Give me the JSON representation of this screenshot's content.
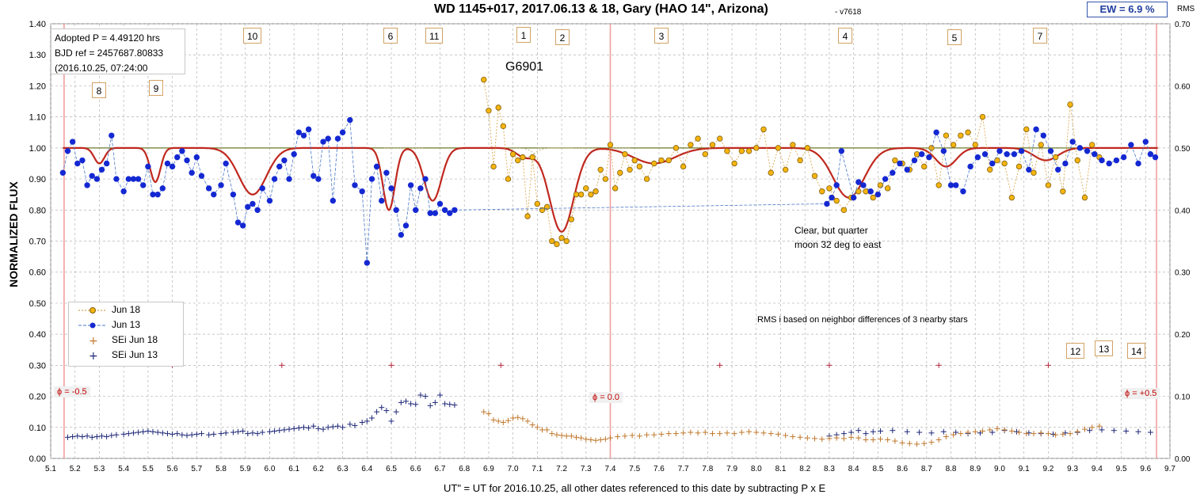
{
  "header": {
    "title": "WD 1145+017, 2017.06.13 & 18, Gary (HAO 14\", Arizona)",
    "version": "- v7618",
    "ew_badge": "EW = 6.9 %",
    "right_axis_label": "RMS"
  },
  "axes": {
    "ylabel": "NORMALIZED FLUX",
    "xlabel": "UT\" = UT for 2016.10.25, all other dates referenced to this date by subtracting P x E"
  },
  "info_box": {
    "line1": "Adopted P = 4.49120  hrs",
    "line2": "BJD ref = 2457687.80833",
    "line3": "(2016.10.25,  07:24:00"
  },
  "annotations": {
    "g6901": "G6901",
    "note_line1": "Clear, but quarter",
    "note_line2": "moon 32 deg to east",
    "rms_note": "RMS i based on neighbor differences of 3 nearby stars",
    "phase_left": "ϕ = -0.5",
    "phase_mid": "ϕ = 0.0",
    "phase_right": "ϕ = +0.5"
  },
  "dip_markers": [
    "10",
    "6",
    "11",
    "1",
    "2",
    "3",
    "4",
    "5",
    "7",
    "8",
    "9",
    "12",
    "13",
    "14"
  ],
  "legend": {
    "jun18": "Jun 18",
    "jun13": "Jun 13",
    "sei18": "SEi Jun 18",
    "sei13": "SEi Jun 13"
  },
  "colors": {
    "jun18_fill": "#f5b40f",
    "jun13_fill": "#1428d2",
    "model_line": "#c0281e",
    "sei18": "#c0782d",
    "sei13": "#1e2878",
    "phase_line": "#f0a0a0",
    "grid": "#b4b4b4"
  },
  "chart_data": {
    "type": "scatter",
    "title": "WD 1145+017, 2017.06.13 & 18, Gary (HAO 14\", Arizona)",
    "xlabel": "UT\" = UT for 2016.10.25, all other dates referenced to this date by subtracting P x E",
    "ylabel": "NORMALIZED FLUX",
    "y2label": "RMS",
    "xlim": [
      5.1,
      9.7
    ],
    "ylim": [
      0.0,
      1.4
    ],
    "y2lim": [
      0.0,
      0.7
    ],
    "x_ticks": [
      "5.1",
      "5.2",
      "5.3",
      "5.4",
      "5.5",
      "5.6",
      "5.7",
      "5.8",
      "5.9",
      "6.0",
      "6.1",
      "6.2",
      "6.3",
      "6.4",
      "6.5",
      "6.6",
      "6.7",
      "6.8",
      "6.9",
      "7.0",
      "7.1",
      "7.2",
      "7.3",
      "7.4",
      "7.5",
      "7.6",
      "7.7",
      "7.8",
      "7.9",
      "8.0",
      "8.1",
      "8.2",
      "8.3",
      "8.4",
      "8.5",
      "8.6",
      "8.7",
      "8.8",
      "8.9",
      "9.0",
      "9.1",
      "9.2",
      "9.3",
      "9.4",
      "9.5",
      "9.6",
      "9.7"
    ],
    "y_ticks": [
      "0.00",
      "0.10",
      "0.20",
      "0.30",
      "0.40",
      "0.50",
      "0.60",
      "0.70",
      "0.80",
      "0.90",
      "1.00",
      "1.10",
      "1.20",
      "1.30",
      "1.40"
    ],
    "y2_ticks": [
      "0.00",
      "0.10",
      "0.20",
      "0.30",
      "0.40",
      "0.50",
      "0.60",
      "0.70"
    ],
    "grid": true,
    "legend_position": "lower-left",
    "phase_lines_x": [
      5.155,
      7.4,
      9.645
    ],
    "markers": [
      {
        "label": "10",
        "x": 5.93,
        "y": 1.35
      },
      {
        "label": "6",
        "x": 6.5,
        "y": 1.35
      },
      {
        "label": "11",
        "x": 6.67,
        "y": 1.35
      },
      {
        "label": "1",
        "x": 7.05,
        "y": 1.35
      },
      {
        "label": "2",
        "x": 7.22,
        "y": 1.34
      },
      {
        "label": "3",
        "x": 7.62,
        "y": 1.35
      },
      {
        "label": "4",
        "x": 8.3,
        "y": 1.35
      },
      {
        "label": "5",
        "x": 8.76,
        "y": 1.35
      },
      {
        "label": "7",
        "x": 9.19,
        "y": 1.35
      },
      {
        "label": "8",
        "x": 5.3,
        "y": 1.18
      },
      {
        "label": "9",
        "x": 5.53,
        "y": 1.19
      },
      {
        "label": "12",
        "x": 9.34,
        "y": 0.34
      },
      {
        "label": "13",
        "x": 9.47,
        "y": 0.35
      },
      {
        "label": "14",
        "x": 9.65,
        "y": 0.34
      }
    ],
    "series": [
      {
        "name": "Jun 13",
        "style": "dot-dash-blue",
        "x": [
          5.15,
          5.17,
          5.19,
          5.21,
          5.23,
          5.25,
          5.27,
          5.29,
          5.31,
          5.33,
          5.35,
          5.37,
          5.4,
          5.42,
          5.44,
          5.46,
          5.48,
          5.5,
          5.52,
          5.54,
          5.56,
          5.58,
          5.6,
          5.62,
          5.64,
          5.66,
          5.68,
          5.7,
          5.72,
          5.75,
          5.77,
          5.8,
          5.82,
          5.85,
          5.87,
          5.89,
          5.91,
          5.93,
          5.95,
          5.97,
          6.0,
          6.02,
          6.04,
          6.06,
          6.08,
          6.1,
          6.12,
          6.14,
          6.16,
          6.18,
          6.2,
          6.22,
          6.24,
          6.26,
          6.28,
          6.3,
          6.33,
          6.35,
          6.38,
          6.4,
          6.42,
          6.44,
          6.46,
          6.48,
          6.5,
          6.52,
          6.54,
          6.56,
          6.58,
          6.6,
          6.62,
          6.64,
          6.66,
          6.68,
          6.7,
          6.72,
          6.74,
          6.76,
          8.29,
          8.31,
          8.33,
          8.35,
          8.4,
          8.42,
          8.44,
          8.47,
          8.5,
          8.53,
          8.56,
          8.59,
          8.62,
          8.65,
          8.68,
          8.71,
          8.74,
          8.77,
          8.8,
          8.82,
          8.85,
          8.88,
          8.91,
          8.94,
          8.97,
          9.0,
          9.03,
          9.06,
          9.09,
          9.12,
          9.15,
          9.18,
          9.21,
          9.24,
          9.27,
          9.3,
          9.33,
          9.36,
          9.39,
          9.42,
          9.45,
          9.48,
          9.51,
          9.54,
          9.57,
          9.6,
          9.62,
          9.64
        ],
        "y": [
          0.92,
          0.99,
          1.02,
          0.95,
          0.96,
          0.88,
          0.91,
          0.9,
          0.93,
          0.95,
          1.04,
          0.9,
          0.86,
          0.9,
          0.9,
          0.9,
          0.88,
          0.94,
          0.85,
          0.85,
          0.87,
          0.95,
          0.94,
          0.97,
          0.99,
          0.96,
          0.92,
          0.97,
          0.91,
          0.87,
          0.85,
          0.88,
          0.95,
          0.85,
          0.76,
          0.75,
          0.81,
          0.82,
          0.8,
          0.87,
          0.83,
          0.9,
          0.94,
          0.96,
          0.9,
          0.98,
          1.05,
          1.04,
          1.06,
          0.91,
          0.9,
          1.02,
          1.03,
          0.83,
          1.03,
          1.05,
          1.09,
          0.88,
          0.86,
          0.63,
          0.9,
          0.94,
          0.83,
          0.92,
          0.87,
          0.8,
          0.72,
          0.75,
          0.88,
          0.8,
          0.87,
          0.9,
          0.79,
          0.79,
          0.82,
          0.8,
          0.79,
          0.8,
          0.82,
          0.84,
          0.88,
          0.99,
          0.84,
          0.89,
          0.88,
          0.86,
          0.85,
          0.9,
          0.92,
          0.95,
          0.93,
          0.96,
          0.98,
          0.97,
          1.05,
          0.99,
          0.88,
          0.88,
          0.86,
          0.94,
          0.97,
          0.98,
          0.95,
          0.99,
          0.98,
          0.98,
          0.99,
          0.93,
          1.06,
          1.04,
          0.99,
          0.93,
          0.95,
          1.02,
          1.0,
          0.99,
          0.98,
          0.96,
          0.95,
          0.96,
          0.97,
          1.01,
          0.95,
          1.02,
          0.98,
          0.97
        ],
        "y_tail_corrected": [
          0.82,
          0.84,
          0.88,
          0.99,
          0.84,
          0.89,
          0.88,
          0.86,
          0.85,
          0.9,
          0.92,
          0.95,
          0.93,
          0.96,
          0.98,
          0.97,
          1.05,
          0.99,
          0.88,
          0.88,
          0.86,
          0.94,
          0.97,
          0.98,
          0.95,
          0.99,
          0.98,
          0.98,
          0.99,
          0.93,
          1.06,
          1.04,
          0.99,
          0.93,
          0.95,
          1.02,
          1.0,
          0.99,
          0.98,
          0.96,
          0.95,
          0.96,
          0.97,
          1.01,
          0.95,
          1.02,
          0.98,
          0.97
        ]
      },
      {
        "name": "Jun 18",
        "style": "dot-dash-orange",
        "x": [
          6.88,
          6.9,
          6.92,
          6.94,
          6.96,
          6.98,
          7.0,
          7.02,
          7.04,
          7.06,
          7.08,
          7.1,
          7.12,
          7.14,
          7.16,
          7.18,
          7.2,
          7.22,
          7.24,
          7.26,
          7.28,
          7.3,
          7.32,
          7.34,
          7.36,
          7.38,
          7.4,
          7.42,
          7.44,
          7.46,
          7.48,
          7.5,
          7.52,
          7.55,
          7.58,
          7.61,
          7.64,
          7.67,
          7.7,
          7.73,
          7.76,
          7.79,
          7.82,
          7.85,
          7.88,
          7.91,
          7.94,
          7.97,
          8.0,
          8.03,
          8.06,
          8.09,
          8.12,
          8.15,
          8.18,
          8.21,
          8.24,
          8.27,
          8.3,
          8.33,
          8.36,
          8.39,
          8.42,
          8.45,
          8.48,
          8.51,
          8.54,
          8.57,
          8.6,
          8.63,
          8.66,
          8.69,
          8.72,
          8.75,
          8.78,
          8.81,
          8.84,
          8.87,
          8.9,
          8.93,
          8.96,
          8.99,
          9.02,
          9.05,
          9.08,
          9.11,
          9.14,
          9.17,
          9.2,
          9.23,
          9.26,
          9.29,
          9.32,
          9.35,
          9.38,
          9.41
        ],
        "y": [
          1.22,
          1.12,
          0.94,
          1.13,
          1.07,
          0.9,
          0.98,
          0.96,
          0.97,
          0.78,
          0.97,
          0.82,
          0.8,
          0.81,
          0.7,
          0.69,
          0.71,
          0.7,
          0.77,
          0.85,
          0.85,
          0.87,
          0.85,
          0.86,
          0.93,
          0.9,
          1.01,
          0.87,
          0.92,
          0.98,
          0.93,
          0.96,
          0.94,
          0.9,
          0.95,
          0.96,
          0.96,
          1.0,
          0.94,
          1.01,
          1.03,
          0.98,
          1.01,
          1.03,
          0.99,
          0.95,
          0.99,
          0.99,
          1.0,
          1.06,
          0.92,
          1.0,
          0.93,
          1.01,
          0.96,
          1.0,
          0.91,
          0.86,
          0.87,
          0.83,
          0.8,
          0.84,
          0.86,
          0.86,
          0.84,
          0.88,
          0.87,
          0.96,
          0.95,
          0.93,
          0.98,
          0.94,
          1.0,
          0.88,
          1.04,
          1.01,
          1.04,
          1.05,
          1.01,
          1.1,
          0.93,
          0.96,
          0.95,
          0.84,
          0.94,
          1.06,
          0.92,
          1.01,
          0.88,
          0.97,
          0.86,
          1.14,
          0.96,
          0.84,
          1.01,
          0.97
        ]
      },
      {
        "name": "SEi Jun 13",
        "style": "plus-darkblue",
        "axis": "right",
        "x": [
          5.17,
          5.19,
          5.21,
          5.23,
          5.25,
          5.27,
          5.29,
          5.31,
          5.33,
          5.35,
          5.37,
          5.4,
          5.42,
          5.44,
          5.46,
          5.48,
          5.5,
          5.52,
          5.54,
          5.56,
          5.58,
          5.6,
          5.62,
          5.64,
          5.66,
          5.68,
          5.7,
          5.72,
          5.75,
          5.77,
          5.8,
          5.82,
          5.85,
          5.87,
          5.89,
          5.91,
          5.93,
          5.95,
          5.97,
          6.0,
          6.02,
          6.04,
          6.06,
          6.08,
          6.1,
          6.12,
          6.14,
          6.16,
          6.18,
          6.2,
          6.22,
          6.24,
          6.26,
          6.28,
          6.3,
          6.33,
          6.35,
          6.38,
          6.4,
          6.42,
          6.44,
          6.46,
          6.48,
          6.5,
          6.52,
          6.54,
          6.56,
          6.58,
          6.6,
          6.62,
          6.64,
          6.66,
          6.68,
          6.7,
          6.72,
          6.74,
          6.76,
          8.3,
          8.33,
          8.36,
          8.39,
          8.42,
          8.45,
          8.48,
          8.51,
          8.56,
          8.62,
          8.67,
          8.72,
          8.77,
          8.82,
          8.87,
          8.92,
          8.97,
          9.02,
          9.07,
          9.12,
          9.17,
          9.22,
          9.27,
          9.32,
          9.37,
          9.42,
          9.47,
          9.52,
          9.57,
          9.62
        ],
        "y": [
          0.034,
          0.035,
          0.036,
          0.035,
          0.036,
          0.034,
          0.035,
          0.036,
          0.035,
          0.037,
          0.038,
          0.039,
          0.04,
          0.041,
          0.042,
          0.043,
          0.044,
          0.043,
          0.042,
          0.041,
          0.04,
          0.039,
          0.04,
          0.038,
          0.037,
          0.038,
          0.039,
          0.04,
          0.038,
          0.039,
          0.04,
          0.041,
          0.042,
          0.043,
          0.044,
          0.04,
          0.041,
          0.04,
          0.042,
          0.043,
          0.044,
          0.045,
          0.046,
          0.047,
          0.048,
          0.049,
          0.05,
          0.049,
          0.052,
          0.048,
          0.047,
          0.05,
          0.051,
          0.052,
          0.05,
          0.055,
          0.053,
          0.058,
          0.06,
          0.065,
          0.075,
          0.082,
          0.077,
          0.06,
          0.075,
          0.09,
          0.092,
          0.088,
          0.087,
          0.102,
          0.1,
          0.085,
          0.09,
          0.102,
          0.088,
          0.087,
          0.086,
          0.036,
          0.038,
          0.04,
          0.042,
          0.045,
          0.04,
          0.043,
          0.044,
          0.045,
          0.043,
          0.042,
          0.041,
          0.043,
          0.042,
          0.04,
          0.041,
          0.042,
          0.045,
          0.043,
          0.041,
          0.04,
          0.039,
          0.041,
          0.042,
          0.045,
          0.046,
          0.045,
          0.044,
          0.043,
          0.042
        ]
      },
      {
        "name": "SEi Jun 18",
        "style": "plus-orange",
        "axis": "right",
        "x": [
          6.88,
          6.9,
          6.92,
          6.94,
          6.96,
          6.98,
          7.0,
          7.02,
          7.04,
          7.06,
          7.08,
          7.1,
          7.12,
          7.14,
          7.16,
          7.18,
          7.2,
          7.22,
          7.24,
          7.26,
          7.28,
          7.3,
          7.32,
          7.34,
          7.36,
          7.38,
          7.4,
          7.43,
          7.46,
          7.49,
          7.52,
          7.55,
          7.58,
          7.61,
          7.64,
          7.67,
          7.7,
          7.73,
          7.76,
          7.79,
          7.82,
          7.85,
          7.88,
          7.91,
          7.94,
          7.97,
          8.0,
          8.03,
          8.06,
          8.09,
          8.12,
          8.15,
          8.18,
          8.21,
          8.24,
          8.27,
          8.3,
          8.33,
          8.36,
          8.39,
          8.42,
          8.45,
          8.48,
          8.51,
          8.54,
          8.57,
          8.6,
          8.63,
          8.66,
          8.69,
          8.72,
          8.75,
          8.78,
          8.81,
          8.84,
          8.87,
          8.9,
          8.93,
          8.96,
          8.99,
          9.02,
          9.05,
          9.08,
          9.11,
          9.14,
          9.17,
          9.2,
          9.23,
          9.26,
          9.29,
          9.32,
          9.35,
          9.38,
          9.41
        ],
        "y": [
          0.075,
          0.072,
          0.062,
          0.06,
          0.058,
          0.061,
          0.065,
          0.066,
          0.064,
          0.06,
          0.054,
          0.05,
          0.046,
          0.046,
          0.04,
          0.038,
          0.037,
          0.036,
          0.036,
          0.034,
          0.033,
          0.031,
          0.03,
          0.029,
          0.03,
          0.031,
          0.033,
          0.035,
          0.036,
          0.037,
          0.036,
          0.038,
          0.038,
          0.039,
          0.04,
          0.04,
          0.041,
          0.042,
          0.041,
          0.042,
          0.04,
          0.04,
          0.041,
          0.04,
          0.042,
          0.043,
          0.042,
          0.041,
          0.04,
          0.039,
          0.037,
          0.035,
          0.034,
          0.033,
          0.032,
          0.031,
          0.032,
          0.033,
          0.032,
          0.034,
          0.033,
          0.03,
          0.03,
          0.031,
          0.03,
          0.028,
          0.025,
          0.024,
          0.023,
          0.024,
          0.026,
          0.03,
          0.035,
          0.038,
          0.04,
          0.042,
          0.043,
          0.044,
          0.046,
          0.048,
          0.046,
          0.044,
          0.042,
          0.04,
          0.04,
          0.041,
          0.04,
          0.038,
          0.039,
          0.04,
          0.043,
          0.047,
          0.05,
          0.052
        ]
      },
      {
        "name": "SEi sparse markers",
        "style": "plus-darkred",
        "x": [
          5.6,
          6.05,
          6.5,
          6.95,
          7.85,
          8.3,
          8.75,
          9.2
        ],
        "y": [
          0.3,
          0.3,
          0.3,
          0.3,
          0.3,
          0.3,
          0.3,
          0.3
        ]
      }
    ]
  }
}
